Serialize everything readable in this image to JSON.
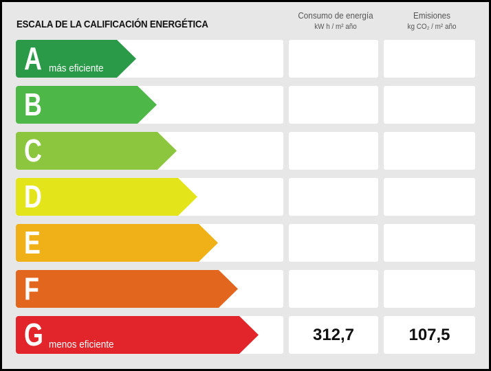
{
  "title": "ESCALA DE LA CALIFICACIÓN ENERGÉTICA",
  "columns": [
    {
      "label": "Consumo de energía",
      "unit": "kW h / m² año"
    },
    {
      "label": "Emisiones",
      "unit": "kg CO₂ / m² año"
    }
  ],
  "ratings": [
    {
      "letter": "A",
      "note": "más eficiente",
      "color": "#2a9a48",
      "consumo": "",
      "emisiones": ""
    },
    {
      "letter": "B",
      "note": "",
      "color": "#4db848",
      "consumo": "",
      "emisiones": ""
    },
    {
      "letter": "C",
      "note": "",
      "color": "#8cc63f",
      "consumo": "",
      "emisiones": ""
    },
    {
      "letter": "D",
      "note": "",
      "color": "#e3e51a",
      "consumo": "",
      "emisiones": ""
    },
    {
      "letter": "E",
      "note": "",
      "color": "#efb018",
      "consumo": "",
      "emisiones": ""
    },
    {
      "letter": "F",
      "note": "",
      "color": "#e3661f",
      "consumo": "",
      "emisiones": ""
    },
    {
      "letter": "G",
      "note": "menos eficiente",
      "color": "#e2252b",
      "consumo": "312,7",
      "emisiones": "107,5"
    }
  ]
}
